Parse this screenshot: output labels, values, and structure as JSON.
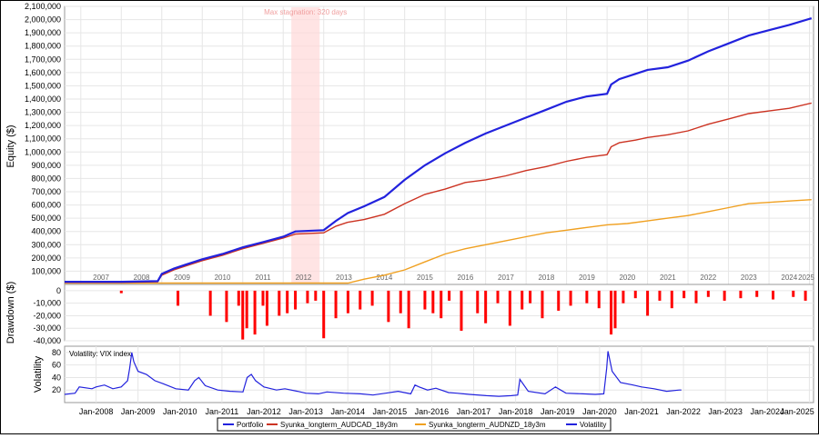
{
  "chart_data": [
    {
      "type": "line",
      "ylabel": "Equity ($)",
      "ylim": [
        0,
        2100000
      ],
      "yticks": [
        100000,
        200000,
        300000,
        400000,
        500000,
        600000,
        700000,
        800000,
        900000,
        1000000,
        1100000,
        1200000,
        1300000,
        1400000,
        1500000,
        1600000,
        1700000,
        1800000,
        1900000,
        2000000,
        2100000
      ],
      "ytick_labels": [
        "100,000",
        "200,000",
        "300,000",
        "400,000",
        "500,000",
        "600,000",
        "700,000",
        "800,000",
        "900,000",
        "1,000,000",
        "1,100,000",
        "1,200,000",
        "1,300,000",
        "1,400,000",
        "1,500,000",
        "1,600,000",
        "1,700,000",
        "1,800,000",
        "1,900,000",
        "2,000,000",
        "2,100,000"
      ],
      "xlim": [
        2006.6,
        2025.1
      ],
      "year_labels": [
        "2007",
        "2008",
        "2009",
        "2010",
        "2011",
        "2012",
        "2013",
        "2014",
        "2015",
        "2016",
        "2017",
        "2018",
        "2019",
        "2020",
        "2021",
        "2022",
        "2023",
        "2024",
        "2025"
      ],
      "annotation": {
        "text": "Max stagnation: 320 days",
        "x_start": 2012.2,
        "x_end": 2012.9
      },
      "grid": true,
      "series": [
        {
          "name": "Portfolio",
          "color": "#2222dd",
          "x": [
            2006.6,
            2008.0,
            2008.9,
            2009.0,
            2009.3,
            2009.6,
            2010.0,
            2010.5,
            2011.0,
            2011.5,
            2012.0,
            2012.3,
            2013.0,
            2013.3,
            2013.6,
            2014.0,
            2014.5,
            2015.0,
            2015.5,
            2016.0,
            2016.5,
            2017.0,
            2017.5,
            2018.0,
            2018.5,
            2019.0,
            2019.5,
            2020.0,
            2020.1,
            2020.3,
            2020.7,
            2021.0,
            2021.5,
            2022.0,
            2022.5,
            2023.0,
            2023.5,
            2024.0,
            2024.5,
            2025.05
          ],
          "y": [
            20000,
            20000,
            25000,
            80000,
            120000,
            150000,
            190000,
            230000,
            280000,
            320000,
            360000,
            400000,
            410000,
            480000,
            540000,
            590000,
            660000,
            790000,
            900000,
            990000,
            1070000,
            1140000,
            1200000,
            1260000,
            1320000,
            1380000,
            1420000,
            1440000,
            1510000,
            1550000,
            1590000,
            1620000,
            1640000,
            1690000,
            1760000,
            1820000,
            1880000,
            1920000,
            1960000,
            2010000
          ]
        },
        {
          "name": "Syunka_longterm_AUDCAD_18y3m",
          "color": "#cc3322",
          "x": [
            2006.6,
            2008.0,
            2008.9,
            2009.0,
            2009.3,
            2009.6,
            2010.0,
            2010.5,
            2011.0,
            2011.5,
            2012.0,
            2012.3,
            2013.0,
            2013.3,
            2013.6,
            2014.0,
            2014.5,
            2015.0,
            2015.5,
            2016.0,
            2016.5,
            2017.0,
            2017.5,
            2018.0,
            2018.5,
            2019.0,
            2019.5,
            2020.0,
            2020.1,
            2020.3,
            2020.7,
            2021.0,
            2021.5,
            2022.0,
            2022.5,
            2023.0,
            2023.5,
            2024.0,
            2024.5,
            2025.05
          ],
          "y": [
            15000,
            15000,
            20000,
            70000,
            110000,
            140000,
            180000,
            220000,
            270000,
            310000,
            350000,
            380000,
            390000,
            440000,
            470000,
            490000,
            530000,
            610000,
            680000,
            720000,
            770000,
            790000,
            820000,
            860000,
            890000,
            930000,
            960000,
            980000,
            1040000,
            1070000,
            1090000,
            1110000,
            1130000,
            1160000,
            1210000,
            1250000,
            1290000,
            1310000,
            1330000,
            1370000
          ]
        },
        {
          "name": "Syunka_longterm_AUDNZD_18y3m",
          "color": "#f0a020",
          "x": [
            2006.6,
            2013.6,
            2014.0,
            2014.5,
            2015.0,
            2015.5,
            2016.0,
            2016.5,
            2017.0,
            2017.5,
            2018.0,
            2018.5,
            2019.0,
            2019.5,
            2020.0,
            2020.5,
            2021.0,
            2021.5,
            2022.0,
            2022.5,
            2023.0,
            2023.5,
            2024.0,
            2024.5,
            2025.05
          ],
          "y": [
            10000,
            10000,
            40000,
            70000,
            110000,
            170000,
            230000,
            270000,
            300000,
            330000,
            360000,
            390000,
            410000,
            430000,
            450000,
            460000,
            480000,
            500000,
            520000,
            550000,
            580000,
            610000,
            620000,
            630000,
            640000
          ]
        }
      ],
      "legend": "bottom"
    },
    {
      "type": "bar",
      "ylabel": "Drawdown ($)",
      "ylim": [
        -40000,
        5000
      ],
      "ytick_labels": [
        "0",
        "-10,000",
        "-20,000",
        "-30,000",
        "-40,000"
      ],
      "yticks": [
        0,
        -10000,
        -20000,
        -30000,
        -40000
      ],
      "color": "#ff0000",
      "x": [
        2008.0,
        2009.4,
        2010.2,
        2010.6,
        2010.9,
        2011.0,
        2011.1,
        2011.3,
        2011.5,
        2011.6,
        2011.9,
        2012.1,
        2012.3,
        2012.6,
        2012.8,
        2013.0,
        2013.3,
        2013.6,
        2013.9,
        2014.2,
        2014.6,
        2014.9,
        2015.1,
        2015.5,
        2015.7,
        2015.9,
        2016.1,
        2016.4,
        2016.8,
        2017.0,
        2017.3,
        2017.6,
        2017.9,
        2018.1,
        2018.4,
        2018.8,
        2019.1,
        2019.5,
        2019.8,
        2020.1,
        2020.2,
        2020.4,
        2020.7,
        2021.0,
        2021.3,
        2021.6,
        2021.9,
        2022.2,
        2022.5,
        2022.9,
        2023.3,
        2023.7,
        2024.1,
        2024.6,
        2024.9
      ],
      "values": [
        -2000,
        -12000,
        -20000,
        -25000,
        -12000,
        -39000,
        -30000,
        -35000,
        -12000,
        -28000,
        -20000,
        -18000,
        -15000,
        -10000,
        -8000,
        -38000,
        -22000,
        -18000,
        -15000,
        -12000,
        -25000,
        -18000,
        -30000,
        -15000,
        -18000,
        -22000,
        -8000,
        -32000,
        -18000,
        -26000,
        -10000,
        -28000,
        -15000,
        -10000,
        -22000,
        -16000,
        -12000,
        -10000,
        -14000,
        -35000,
        -30000,
        -10000,
        -6000,
        -20000,
        -8000,
        -14000,
        -6000,
        -10000,
        -5000,
        -8000,
        -6000,
        -5000,
        -7000,
        -5000,
        -8000
      ]
    },
    {
      "type": "line",
      "title": "Volatility: VIX index",
      "ylabel": "Volatility",
      "ylim": [
        0,
        90
      ],
      "yticks": [
        20,
        40,
        60,
        80
      ],
      "ytick_labels": [
        "20",
        "40",
        "60",
        "80"
      ],
      "xlim": [
        2007.25,
        2025.1
      ],
      "xtick_labels": [
        "Jan-2008",
        "Jan-2009",
        "Jan-2010",
        "Jan-2011",
        "Jan-2012",
        "Jan-2013",
        "Jan-2014",
        "Jan-2015",
        "Jan-2016",
        "Jan-2017",
        "Jan-2018",
        "Jan-2019",
        "Jan-2020",
        "Jan-2021",
        "Jan-2022",
        "Jan-2023",
        "Jan-2024",
        "Jan-2025"
      ],
      "xticks": [
        2008,
        2009,
        2010,
        2011,
        2012,
        2013,
        2014,
        2015,
        2016,
        2017,
        2018,
        2019,
        2020,
        2021,
        2022,
        2023,
        2024,
        2025
      ],
      "series": [
        {
          "name": "Volatility",
          "color": "#2222dd",
          "x": [
            2007.25,
            2007.5,
            2007.6,
            2007.9,
            2008.0,
            2008.2,
            2008.4,
            2008.6,
            2008.75,
            2008.8,
            2008.85,
            2008.9,
            2009.0,
            2009.2,
            2009.4,
            2009.6,
            2009.9,
            2010.2,
            2010.35,
            2010.45,
            2010.6,
            2010.9,
            2011.2,
            2011.5,
            2011.6,
            2011.7,
            2011.8,
            2012.0,
            2012.3,
            2012.5,
            2012.8,
            2013.0,
            2013.3,
            2013.5,
            2013.9,
            2014.3,
            2014.6,
            2014.9,
            2015.2,
            2015.5,
            2015.6,
            2015.7,
            2015.9,
            2016.1,
            2016.4,
            2016.6,
            2016.9,
            2017.3,
            2017.6,
            2017.9,
            2018.05,
            2018.1,
            2018.3,
            2018.7,
            2018.95,
            2019.2,
            2019.6,
            2019.9,
            2020.1,
            2020.17,
            2020.2,
            2020.3,
            2020.5,
            2020.8,
            2021.0,
            2021.3,
            2021.6,
            2021.9,
            2021.95
          ],
          "y": [
            13,
            15,
            25,
            22,
            25,
            28,
            22,
            25,
            35,
            55,
            80,
            65,
            50,
            45,
            35,
            30,
            22,
            20,
            35,
            40,
            27,
            20,
            18,
            17,
            40,
            45,
            35,
            25,
            20,
            22,
            18,
            15,
            14,
            17,
            15,
            14,
            12,
            15,
            18,
            14,
            28,
            25,
            20,
            23,
            16,
            15,
            13,
            11,
            10,
            11,
            12,
            37,
            18,
            14,
            25,
            15,
            14,
            13,
            14,
            55,
            82,
            50,
            32,
            28,
            25,
            22,
            18,
            20,
            20
          ]
        }
      ]
    }
  ],
  "legend": {
    "items": [
      {
        "label": "Portfolio",
        "color": "#2222dd"
      },
      {
        "label": "Syunka_longterm_AUDCAD_18y3m",
        "color": "#cc3322"
      },
      {
        "label": "Syunka_longterm_AUDNZD_18y3m",
        "color": "#f0a020"
      },
      {
        "label": "Volatility",
        "color": "#2222dd"
      }
    ]
  }
}
